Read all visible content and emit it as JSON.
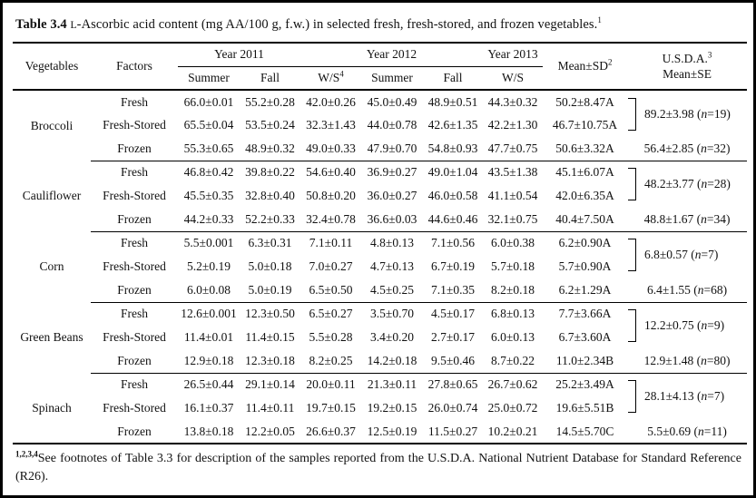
{
  "title": {
    "label": "Table 3.4",
    "smallcap": "L",
    "text": "-Ascorbic acid content (mg AA/100 g, f.w.) in selected fresh, fresh-stored, and frozen vegetables.",
    "sup": "1"
  },
  "header": {
    "vegetables": "Vegetables",
    "factors": "Factors",
    "year_groups": [
      {
        "label": "Year 2011",
        "colspan": 2
      },
      {
        "label": "Year 2012",
        "colspan": 3
      },
      {
        "label": "Year 2013",
        "colspan": 1
      }
    ],
    "seasons": [
      {
        "label": "Summer"
      },
      {
        "label": "Fall"
      },
      {
        "label": "W/S",
        "sup": "4"
      },
      {
        "label": "Summer"
      },
      {
        "label": "Fall"
      },
      {
        "label": "W/S"
      }
    ],
    "mean_sd": {
      "label": "Mean±SD",
      "sup": "2"
    },
    "usda": {
      "line1": "U.S.D.A.",
      "sup": "3",
      "line2": "Mean±SE"
    }
  },
  "table": {
    "groups": [
      {
        "vegetable": "Broccoli",
        "rows": [
          {
            "factor": "Fresh",
            "values": [
              "66.0±0.01",
              "55.2±0.28",
              "42.0±0.26",
              "45.0±0.49",
              "48.9±0.51",
              "44.3±0.32"
            ],
            "mean_sd": "50.2±8.47A"
          },
          {
            "factor": "Fresh-Stored",
            "values": [
              "65.5±0.04",
              "53.5±0.24",
              "32.3±1.43",
              "44.0±0.78",
              "42.6±1.35",
              "42.2±1.30"
            ],
            "mean_sd": "46.7±10.75A"
          },
          {
            "factor": "Frozen",
            "values": [
              "55.3±0.65",
              "48.9±0.32",
              "49.0±0.33",
              "47.9±0.70",
              "54.8±0.93",
              "47.7±0.75"
            ],
            "mean_sd": "50.6±3.32A"
          }
        ],
        "usda_fresh": {
          "pre": "89.2±3.98 (",
          "n": "n",
          "post": "=19)"
        },
        "usda_frozen": {
          "pre": "56.4±2.85 (",
          "n": "n",
          "post": "=32)"
        }
      },
      {
        "vegetable": "Cauliflower",
        "rows": [
          {
            "factor": "Fresh",
            "values": [
              "46.8±0.42",
              "39.8±0.22",
              "54.6±0.40",
              "36.9±0.27",
              "49.0±1.04",
              "43.5±1.38"
            ],
            "mean_sd": "45.1±6.07A"
          },
          {
            "factor": "Fresh-Stored",
            "values": [
              "45.5±0.35",
              "32.8±0.40",
              "50.8±0.20",
              "36.0±0.27",
              "46.0±0.58",
              "41.1±0.54"
            ],
            "mean_sd": "42.0±6.35A"
          },
          {
            "factor": "Frozen",
            "values": [
              "44.2±0.33",
              "52.2±0.33",
              "32.4±0.78",
              "36.6±0.03",
              "44.6±0.46",
              "32.1±0.75"
            ],
            "mean_sd": "40.4±7.50A"
          }
        ],
        "usda_fresh": {
          "pre": "48.2±3.77 (",
          "n": "n",
          "post": "=28)"
        },
        "usda_frozen": {
          "pre": "48.8±1.67 (",
          "n": "n",
          "post": "=34)"
        }
      },
      {
        "vegetable": "Corn",
        "rows": [
          {
            "factor": "Fresh",
            "values": [
              "5.5±0.001",
              "6.3±0.31",
              "7.1±0.11",
              "4.8±0.13",
              "7.1±0.56",
              "6.0±0.38"
            ],
            "mean_sd": "6.2±0.90A"
          },
          {
            "factor": "Fresh-Stored",
            "values": [
              "5.2±0.19",
              "5.0±0.18",
              "7.0±0.27",
              "4.7±0.13",
              "6.7±0.19",
              "5.7±0.18"
            ],
            "mean_sd": "5.7±0.90A"
          },
          {
            "factor": "Frozen",
            "values": [
              "6.0±0.08",
              "5.0±0.19",
              "6.5±0.50",
              "4.5±0.25",
              "7.1±0.35",
              "8.2±0.18"
            ],
            "mean_sd": "6.2±1.29A"
          }
        ],
        "usda_fresh": {
          "pre": "6.8±0.57 (",
          "n": "n",
          "post": "=7)"
        },
        "usda_frozen": {
          "pre": "6.4±1.55 (",
          "n": "n",
          "post": "=68)"
        }
      },
      {
        "vegetable": "Green Beans",
        "rows": [
          {
            "factor": "Fresh",
            "values": [
              "12.6±0.001",
              "12.3±0.50",
              "6.5±0.27",
              "3.5±0.70",
              "4.5±0.17",
              "6.8±0.13"
            ],
            "mean_sd": "7.7±3.66A"
          },
          {
            "factor": "Fresh-Stored",
            "values": [
              "11.4±0.01",
              "11.4±0.15",
              "5.5±0.28",
              "3.4±0.20",
              "2.7±0.17",
              "6.0±0.13"
            ],
            "mean_sd": "6.7±3.60A"
          },
          {
            "factor": "Frozen",
            "values": [
              "12.9±0.18",
              "12.3±0.18",
              "8.2±0.25",
              "14.2±0.18",
              "9.5±0.46",
              "8.7±0.22"
            ],
            "mean_sd": "11.0±2.34B"
          }
        ],
        "usda_fresh": {
          "pre": "12.2±0.75 (",
          "n": "n",
          "post": "=9)"
        },
        "usda_frozen": {
          "pre": "12.9±1.48 (",
          "n": "n",
          "post": "=80)"
        }
      },
      {
        "vegetable": "Spinach",
        "rows": [
          {
            "factor": "Fresh",
            "values": [
              "26.5±0.44",
              "29.1±0.14",
              "20.0±0.11",
              "21.3±0.11",
              "27.8±0.65",
              "26.7±0.62"
            ],
            "mean_sd": "25.2±3.49A"
          },
          {
            "factor": "Fresh-Stored",
            "values": [
              "16.1±0.37",
              "11.4±0.11",
              "19.7±0.15",
              "19.2±0.15",
              "26.0±0.74",
              "25.0±0.72"
            ],
            "mean_sd": "19.6±5.51B"
          },
          {
            "factor": "Frozen",
            "values": [
              "13.8±0.18",
              "12.2±0.05",
              "26.6±0.37",
              "12.5±0.19",
              "11.5±0.27",
              "10.2±0.21"
            ],
            "mean_sd": "14.5±5.70C"
          }
        ],
        "usda_fresh": {
          "pre": "28.1±4.13 (",
          "n": "n",
          "post": "=7)"
        },
        "usda_frozen": {
          "pre": "5.5±0.69 (",
          "n": "n",
          "post": "=11)"
        }
      }
    ]
  },
  "footnote": {
    "sup": "1,2,3,4",
    "text": "See footnotes of Table 3.3 for description of the samples reported from the U.S.D.A. National Nutrient Database for Standard Reference (R26)."
  }
}
